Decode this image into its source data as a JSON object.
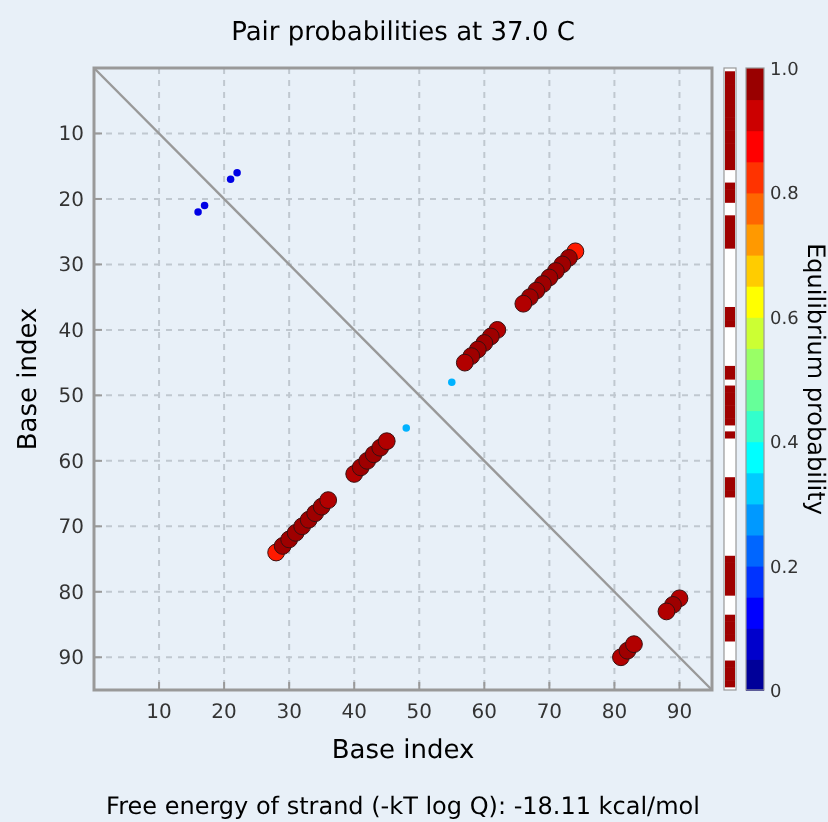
{
  "chart_data": {
    "type": "bubble",
    "title": "Pair probabilities at 37.0 C",
    "xlabel": "Base index",
    "ylabel": "Base index",
    "clabel": "Equilibrium probability",
    "annotations": [
      "Free energy of strand (-kT log Q): -18.11 kcal/mol"
    ],
    "xlim": [
      0,
      95
    ],
    "ylim": [
      95,
      0
    ],
    "xticks": [
      10,
      20,
      30,
      40,
      50,
      60,
      70,
      80,
      90
    ],
    "yticks": [
      10,
      20,
      30,
      40,
      50,
      60,
      70,
      80,
      90
    ],
    "clim": [
      0,
      1
    ],
    "cticks": [
      0.0,
      {
        "value": 0.2,
        "label": "0.2"
      },
      {
        "value": 0.4,
        "label": "0.4"
      },
      {
        "value": 0.6,
        "label": "0.6"
      },
      {
        "value": 0.8,
        "label": "0.8"
      },
      {
        "value": 1,
        "label": "1.0"
      }
    ],
    "grid": true,
    "marker": "circle",
    "series": [
      {
        "type": "line",
        "color": "#999999",
        "marker": "none",
        "x": [
          0,
          95
        ],
        "values": [
          0,
          95
        ]
      },
      {
        "type": "bubble",
        "x": [
          28,
          29,
          30,
          31,
          32,
          33,
          34,
          35,
          36,
          40,
          41,
          42,
          43,
          44,
          45,
          74,
          73,
          72,
          71,
          70,
          69,
          68,
          67,
          66,
          62,
          61,
          60,
          59,
          58,
          57,
          81,
          82,
          83,
          90,
          89,
          88,
          48,
          55,
          16,
          17,
          21,
          22
        ],
        "values": [
          74,
          73,
          72,
          71,
          70,
          69,
          68,
          67,
          66,
          62,
          61,
          60,
          59,
          58,
          57,
          28,
          29,
          30,
          31,
          32,
          33,
          34,
          35,
          36,
          40,
          41,
          42,
          43,
          44,
          45,
          90,
          89,
          88,
          81,
          82,
          83,
          55,
          48,
          22,
          21,
          17,
          16
        ],
        "sizes": [
          1,
          1,
          1,
          1,
          1,
          1,
          1,
          1,
          1,
          1,
          1,
          1,
          1,
          1,
          1,
          1,
          1,
          1,
          1,
          1,
          1,
          1,
          1,
          1,
          1,
          1,
          1,
          1,
          1,
          1,
          1,
          1,
          1,
          1,
          1,
          1,
          0.2,
          0.2,
          0.2,
          0.2,
          0.2,
          0.2
        ],
        "colors": [
          "#ff1a00",
          "#9e0000",
          "#9e0000",
          "#9e0000",
          "#9e0000",
          "#9e0000",
          "#9e0000",
          "#9e0000",
          "#b20000",
          "#b20000",
          "#9e0000",
          "#9e0000",
          "#9e0000",
          "#9e0000",
          "#b20000",
          "#ff1a00",
          "#9e0000",
          "#9e0000",
          "#9e0000",
          "#9e0000",
          "#9e0000",
          "#9e0000",
          "#9e0000",
          "#b20000",
          "#b20000",
          "#9e0000",
          "#9e0000",
          "#9e0000",
          "#9e0000",
          "#b20000",
          "#b20000",
          "#9e0000",
          "#b20000",
          "#b20000",
          "#9e0000",
          "#b20000",
          "#00b2ff",
          "#00b2ff",
          "#0000e5",
          "#0000e5",
          "#0000e5",
          "#0000e5"
        ]
      }
    ]
  }
}
